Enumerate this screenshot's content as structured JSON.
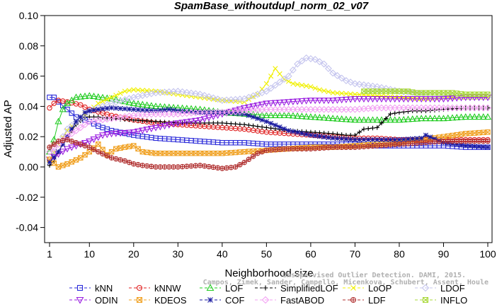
{
  "chart_data": {
    "type": "line",
    "title": "SpamBase_withoutdupl_norm_02_v07",
    "xlabel": "Neighborhood size",
    "ylabel": "Adjusted AP",
    "xlim": [
      1,
      100
    ],
    "ylim": [
      -0.05,
      0.1
    ],
    "xticks": [
      1,
      10,
      20,
      30,
      40,
      50,
      60,
      70,
      80,
      90,
      100
    ],
    "yticks": [
      -0.04,
      -0.02,
      0.0,
      0.02,
      0.04,
      0.06,
      0.08,
      0.1
    ],
    "ytick_labels": [
      "-0.04",
      "-0.02",
      "0.00",
      "0.02",
      "0.04",
      "0.06",
      "0.08",
      "0.10"
    ],
    "grid": false,
    "legend_position": "bottom",
    "watermark": [
      "Unsupervised Outlier Detection. DAMI, 2015.",
      "Campos, Zimek, Sander, Campello, Micenkova, Schubert, Assent, Houle"
    ],
    "series": [
      {
        "name": "kNN",
        "color": "#2b2bd9",
        "marker": "square",
        "points": [
          [
            1,
            0.046
          ],
          [
            2,
            0.046
          ],
          [
            3,
            0.043
          ],
          [
            5,
            0.038
          ],
          [
            7,
            0.033
          ],
          [
            10,
            0.03
          ],
          [
            12,
            0.027
          ],
          [
            15,
            0.024
          ],
          [
            20,
            0.021
          ],
          [
            25,
            0.019
          ],
          [
            30,
            0.018
          ],
          [
            35,
            0.017
          ],
          [
            40,
            0.016
          ],
          [
            45,
            0.016
          ],
          [
            50,
            0.015
          ],
          [
            55,
            0.015
          ],
          [
            60,
            0.015
          ],
          [
            65,
            0.015
          ],
          [
            70,
            0.015
          ],
          [
            75,
            0.014
          ],
          [
            80,
            0.014
          ],
          [
            85,
            0.014
          ],
          [
            90,
            0.014
          ],
          [
            95,
            0.013
          ],
          [
            100,
            0.013
          ]
        ]
      },
      {
        "name": "kNNW",
        "color": "#e02020",
        "marker": "circle",
        "points": [
          [
            1,
            0.039
          ],
          [
            2,
            0.042
          ],
          [
            3,
            0.044
          ],
          [
            5,
            0.043
          ],
          [
            8,
            0.041
          ],
          [
            10,
            0.038
          ],
          [
            15,
            0.034
          ],
          [
            20,
            0.031
          ],
          [
            25,
            0.029
          ],
          [
            30,
            0.028
          ],
          [
            35,
            0.027
          ],
          [
            40,
            0.026
          ],
          [
            45,
            0.025
          ],
          [
            50,
            0.023
          ],
          [
            55,
            0.022
          ],
          [
            60,
            0.021
          ],
          [
            65,
            0.02
          ],
          [
            70,
            0.019
          ],
          [
            75,
            0.019
          ],
          [
            80,
            0.018
          ],
          [
            85,
            0.018
          ],
          [
            90,
            0.018
          ],
          [
            95,
            0.018
          ],
          [
            100,
            0.018
          ]
        ]
      },
      {
        "name": "LOF",
        "color": "#22cc22",
        "marker": "triangle",
        "points": [
          [
            1,
            0.01
          ],
          [
            2,
            0.018
          ],
          [
            3,
            0.03
          ],
          [
            4,
            0.038
          ],
          [
            5,
            0.042
          ],
          [
            7,
            0.046
          ],
          [
            10,
            0.047
          ],
          [
            15,
            0.045
          ],
          [
            20,
            0.042
          ],
          [
            25,
            0.04
          ],
          [
            30,
            0.039
          ],
          [
            35,
            0.038
          ],
          [
            40,
            0.036
          ],
          [
            45,
            0.035
          ],
          [
            50,
            0.034
          ],
          [
            55,
            0.034
          ],
          [
            60,
            0.033
          ],
          [
            65,
            0.032
          ],
          [
            70,
            0.031
          ],
          [
            75,
            0.031
          ],
          [
            80,
            0.031
          ],
          [
            85,
            0.032
          ],
          [
            90,
            0.032
          ],
          [
            95,
            0.033
          ],
          [
            100,
            0.033
          ]
        ]
      },
      {
        "name": "SimplifiedLOF",
        "color": "#000000",
        "marker": "plus",
        "points": [
          [
            1,
            0.001
          ],
          [
            2,
            0.004
          ],
          [
            3,
            0.01
          ],
          [
            5,
            0.02
          ],
          [
            7,
            0.028
          ],
          [
            9,
            0.033
          ],
          [
            12,
            0.033
          ],
          [
            15,
            0.032
          ],
          [
            20,
            0.031
          ],
          [
            25,
            0.03
          ],
          [
            30,
            0.029
          ],
          [
            35,
            0.029
          ],
          [
            40,
            0.029
          ],
          [
            45,
            0.028
          ],
          [
            50,
            0.026
          ],
          [
            55,
            0.024
          ],
          [
            60,
            0.023
          ],
          [
            65,
            0.022
          ],
          [
            68,
            0.021
          ],
          [
            70,
            0.021
          ],
          [
            72,
            0.025
          ],
          [
            75,
            0.026
          ],
          [
            78,
            0.035
          ],
          [
            80,
            0.036
          ],
          [
            83,
            0.037
          ],
          [
            86,
            0.037
          ],
          [
            90,
            0.038
          ],
          [
            95,
            0.039
          ],
          [
            100,
            0.039
          ]
        ]
      },
      {
        "name": "LoOP",
        "color": "#f0f000",
        "marker": "x",
        "points": [
          [
            1,
            0.004
          ],
          [
            3,
            0.015
          ],
          [
            5,
            0.024
          ],
          [
            8,
            0.033
          ],
          [
            10,
            0.037
          ],
          [
            12,
            0.042
          ],
          [
            15,
            0.046
          ],
          [
            18,
            0.05
          ],
          [
            20,
            0.051
          ],
          [
            25,
            0.05
          ],
          [
            30,
            0.048
          ],
          [
            35,
            0.046
          ],
          [
            40,
            0.044
          ],
          [
            45,
            0.043
          ],
          [
            48,
            0.048
          ],
          [
            50,
            0.055
          ],
          [
            52,
            0.065
          ],
          [
            54,
            0.058
          ],
          [
            56,
            0.055
          ],
          [
            58,
            0.054
          ],
          [
            60,
            0.053
          ],
          [
            62,
            0.051
          ],
          [
            65,
            0.049
          ],
          [
            70,
            0.048
          ],
          [
            75,
            0.047
          ],
          [
            80,
            0.046
          ],
          [
            85,
            0.045
          ],
          [
            90,
            0.046
          ],
          [
            95,
            0.046
          ],
          [
            100,
            0.046
          ]
        ]
      },
      {
        "name": "LDOF",
        "color": "#c4c4ee",
        "marker": "diamond",
        "points": [
          [
            1,
            0.005
          ],
          [
            5,
            0.025
          ],
          [
            10,
            0.037
          ],
          [
            15,
            0.042
          ],
          [
            20,
            0.046
          ],
          [
            25,
            0.049
          ],
          [
            30,
            0.05
          ],
          [
            35,
            0.048
          ],
          [
            40,
            0.044
          ],
          [
            45,
            0.045
          ],
          [
            50,
            0.05
          ],
          [
            55,
            0.06
          ],
          [
            57,
            0.068
          ],
          [
            59,
            0.072
          ],
          [
            61,
            0.071
          ],
          [
            63,
            0.068
          ],
          [
            65,
            0.062
          ],
          [
            68,
            0.057
          ],
          [
            70,
            0.055
          ],
          [
            75,
            0.053
          ],
          [
            80,
            0.05
          ],
          [
            85,
            0.048
          ],
          [
            90,
            0.047
          ],
          [
            95,
            0.046
          ],
          [
            100,
            0.046
          ]
        ]
      },
      {
        "name": "ODIN",
        "color": "#9a1ee0",
        "marker": "triangle-down",
        "points": [
          [
            1,
            0.005
          ],
          [
            5,
            0.012
          ],
          [
            10,
            0.017
          ],
          [
            13,
            0.021
          ],
          [
            15,
            0.022
          ],
          [
            20,
            0.023
          ],
          [
            25,
            0.026
          ],
          [
            30,
            0.029
          ],
          [
            35,
            0.031
          ],
          [
            40,
            0.035
          ],
          [
            45,
            0.039
          ],
          [
            50,
            0.042
          ],
          [
            55,
            0.043
          ],
          [
            60,
            0.044
          ],
          [
            65,
            0.044
          ],
          [
            70,
            0.045
          ],
          [
            75,
            0.045
          ],
          [
            80,
            0.045
          ],
          [
            85,
            0.045
          ],
          [
            90,
            0.045
          ],
          [
            95,
            0.046
          ],
          [
            100,
            0.046
          ]
        ]
      },
      {
        "name": "KDEOS",
        "color": "#f0a020",
        "marker": "box-x",
        "points": [
          [
            1,
            0.005
          ],
          [
            3,
            0.0
          ],
          [
            5,
            0.002
          ],
          [
            8,
            0.006
          ],
          [
            10,
            0.01
          ],
          [
            12,
            0.015
          ],
          [
            14,
            0.008
          ],
          [
            16,
            0.012
          ],
          [
            18,
            0.013
          ],
          [
            20,
            0.014
          ],
          [
            22,
            0.01
          ],
          [
            25,
            0.009
          ],
          [
            28,
            0.009
          ],
          [
            30,
            0.009
          ],
          [
            35,
            0.009
          ],
          [
            40,
            0.009
          ],
          [
            45,
            0.01
          ],
          [
            50,
            0.011
          ],
          [
            55,
            0.012
          ],
          [
            60,
            0.013
          ],
          [
            65,
            0.013
          ],
          [
            70,
            0.014
          ],
          [
            75,
            0.015
          ],
          [
            80,
            0.016
          ],
          [
            85,
            0.018
          ],
          [
            90,
            0.02
          ],
          [
            95,
            0.022
          ],
          [
            100,
            0.023
          ]
        ]
      },
      {
        "name": "COF",
        "color": "#1a1aa0",
        "marker": "asterisk",
        "points": [
          [
            1,
            0.003
          ],
          [
            3,
            0.01
          ],
          [
            5,
            0.02
          ],
          [
            7,
            0.03
          ],
          [
            9,
            0.036
          ],
          [
            10,
            0.037
          ],
          [
            12,
            0.038
          ],
          [
            15,
            0.039
          ],
          [
            20,
            0.038
          ],
          [
            25,
            0.037
          ],
          [
            28,
            0.038
          ],
          [
            30,
            0.037
          ],
          [
            35,
            0.036
          ],
          [
            40,
            0.036
          ],
          [
            45,
            0.035
          ],
          [
            50,
            0.03
          ],
          [
            55,
            0.024
          ],
          [
            60,
            0.021
          ],
          [
            65,
            0.019
          ],
          [
            70,
            0.018
          ],
          [
            75,
            0.018
          ],
          [
            80,
            0.018
          ],
          [
            85,
            0.019
          ],
          [
            86,
            0.021
          ],
          [
            90,
            0.016
          ],
          [
            95,
            0.014
          ],
          [
            100,
            0.013
          ]
        ]
      },
      {
        "name": "FastABOD",
        "color": "#f2a0f2",
        "marker": "diamond",
        "points": [
          [
            1,
            0.01
          ],
          [
            5,
            0.02
          ],
          [
            10,
            0.03
          ],
          [
            15,
            0.032
          ],
          [
            20,
            0.034
          ],
          [
            25,
            0.035
          ],
          [
            30,
            0.035
          ],
          [
            35,
            0.036
          ],
          [
            40,
            0.036
          ],
          [
            45,
            0.037
          ],
          [
            50,
            0.038
          ],
          [
            55,
            0.038
          ],
          [
            60,
            0.038
          ],
          [
            65,
            0.038
          ],
          [
            70,
            0.038
          ],
          [
            75,
            0.039
          ],
          [
            80,
            0.039
          ],
          [
            85,
            0.039
          ],
          [
            90,
            0.039
          ],
          [
            95,
            0.039
          ],
          [
            100,
            0.039
          ]
        ]
      },
      {
        "name": "LDF",
        "color": "#b03030",
        "marker": "circle-plus",
        "points": [
          [
            1,
            0.013
          ],
          [
            3,
            0.017
          ],
          [
            5,
            0.018
          ],
          [
            8,
            0.015
          ],
          [
            10,
            0.013
          ],
          [
            12,
            0.01
          ],
          [
            15,
            0.006
          ],
          [
            18,
            0.004
          ],
          [
            20,
            0.002
          ],
          [
            22,
            0.001
          ],
          [
            25,
            0.0
          ],
          [
            30,
            0.0
          ],
          [
            35,
            0.001
          ],
          [
            40,
            -0.001
          ],
          [
            43,
            0.0
          ],
          [
            45,
            0.003
          ],
          [
            48,
            0.009
          ],
          [
            50,
            0.011
          ],
          [
            55,
            0.012
          ],
          [
            60,
            0.012
          ],
          [
            65,
            0.013
          ],
          [
            70,
            0.013
          ],
          [
            75,
            0.014
          ],
          [
            80,
            0.015
          ],
          [
            85,
            0.016
          ],
          [
            90,
            0.017
          ],
          [
            95,
            0.017
          ],
          [
            100,
            0.017
          ]
        ]
      },
      {
        "name": "INFLO",
        "color": "#a8d838",
        "marker": "box-x",
        "points": [
          [
            72,
            0.05
          ],
          [
            74,
            0.05
          ],
          [
            80,
            0.05
          ],
          [
            82,
            0.05
          ],
          [
            84,
            0.049
          ],
          [
            88,
            0.049
          ],
          [
            90,
            0.049
          ],
          [
            92,
            0.049
          ],
          [
            95,
            0.048
          ],
          [
            98,
            0.048
          ],
          [
            100,
            0.048
          ]
        ]
      }
    ]
  }
}
